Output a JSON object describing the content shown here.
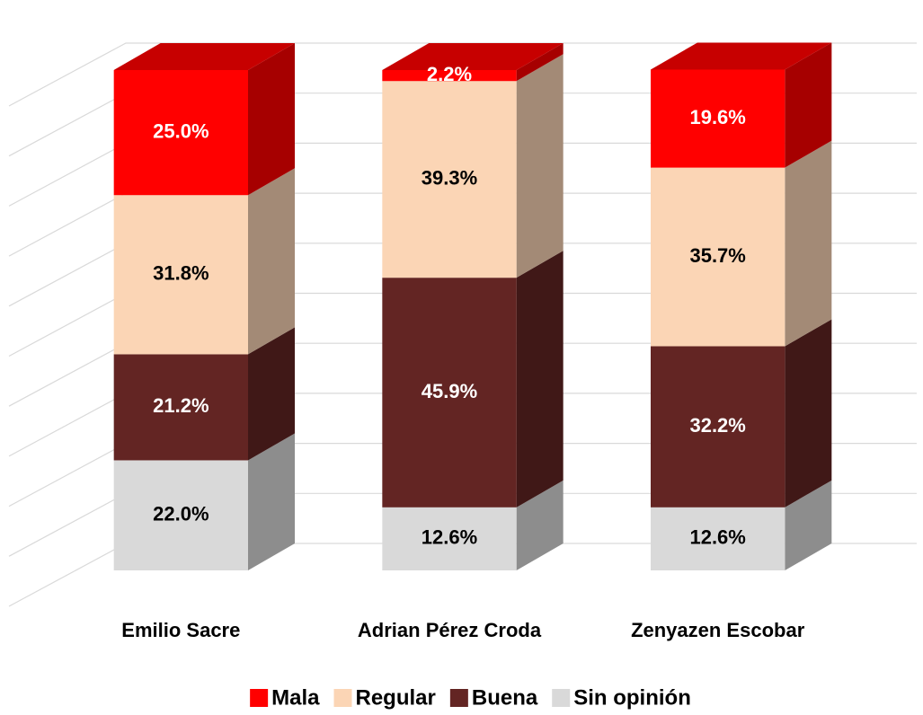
{
  "chart_data": {
    "type": "bar3d_stacked",
    "categories": [
      "Emilio Sacre",
      "Adrian Pérez Croda",
      "Zenyazen Escobar"
    ],
    "series": [
      {
        "name": "Mala",
        "color": "#ff0000",
        "values": [
          25.0,
          2.2,
          19.6
        ],
        "value_labels": [
          "25.0%",
          "2.2%",
          "19.6%"
        ]
      },
      {
        "name": "Regular",
        "color": "#fbd5b5",
        "values": [
          31.8,
          39.3,
          35.7
        ],
        "value_labels": [
          "31.8%",
          "39.3%",
          "35.7%"
        ]
      },
      {
        "name": "Buena",
        "color": "#632523",
        "values": [
          21.2,
          45.9,
          32.2
        ],
        "value_labels": [
          "21.2%",
          "45.9%",
          "32.2%"
        ]
      },
      {
        "name": "Sin opinión",
        "color": "#d9d9d9",
        "values": [
          22.0,
          12.6,
          12.6
        ],
        "value_labels": [
          "22.0%",
          "12.6%",
          "12.6%"
        ]
      }
    ],
    "ylim": [
      0,
      100
    ],
    "yticks": [
      0,
      10,
      20,
      30,
      40,
      50,
      60,
      70,
      80,
      90,
      100
    ],
    "grid": true,
    "legend": "bottom"
  }
}
